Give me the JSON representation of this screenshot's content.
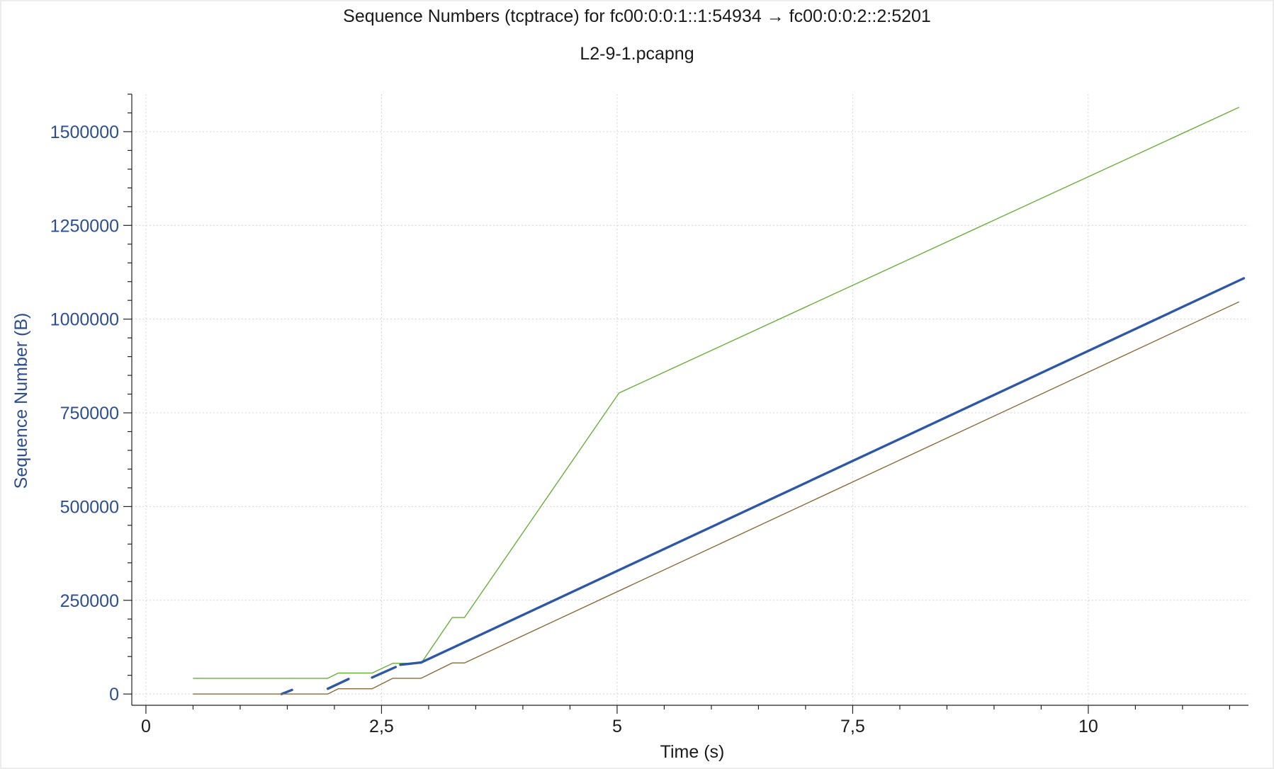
{
  "chart_data": {
    "type": "line",
    "title": "Sequence Numbers (tcptrace) for fc00:0:0:1::1:54934 → fc00:0:0:2::2:5201",
    "subtitle": "L2-9-1.pcapng",
    "xlabel": "Time (s)",
    "ylabel": "Sequence Number (B)",
    "xlim": [
      -0.15,
      11.7
    ],
    "ylim": [
      -30000,
      1600000
    ],
    "xticks": [
      {
        "value": 0,
        "label": "0"
      },
      {
        "value": 2.5,
        "label": "2,5"
      },
      {
        "value": 5,
        "label": "5"
      },
      {
        "value": 7.5,
        "label": "7,5"
      },
      {
        "value": 10,
        "label": "10"
      }
    ],
    "yticks": [
      {
        "value": 0,
        "label": "0"
      },
      {
        "value": 250000,
        "label": "250000"
      },
      {
        "value": 500000,
        "label": "500000"
      },
      {
        "value": 750000,
        "label": "750000"
      },
      {
        "value": 1000000,
        "label": "1000000"
      },
      {
        "value": 1250000,
        "label": "1250000"
      },
      {
        "value": 1500000,
        "label": "1500000"
      }
    ],
    "grid": true,
    "series": [
      {
        "kind": "receive-window",
        "color": "#6aae3a",
        "points": [
          [
            0.5,
            42000
          ],
          [
            1.93,
            42000
          ],
          [
            2.04,
            56000
          ],
          [
            2.4,
            56000
          ],
          [
            2.62,
            82000
          ],
          [
            2.92,
            82000
          ],
          [
            3.25,
            204000
          ],
          [
            3.38,
            204000
          ],
          [
            5.02,
            803000
          ],
          [
            11.6,
            1565000
          ]
        ]
      },
      {
        "kind": "sequence",
        "color": "#2e58a6",
        "segments": [
          [
            [
              1.44,
              0
            ],
            [
              1.55,
              11000
            ]
          ],
          [
            [
              1.93,
              14000
            ],
            [
              2.15,
              40000
            ]
          ],
          [
            [
              2.4,
              44000
            ],
            [
              2.65,
              72000
            ]
          ],
          [
            [
              2.7,
              78000
            ],
            [
              2.92,
              84000
            ]
          ],
          [
            [
              2.92,
              84000
            ],
            [
              11.65,
              1109000
            ]
          ]
        ]
      },
      {
        "kind": "ack",
        "color": "#8b6a3a",
        "points": [
          [
            0.5,
            0
          ],
          [
            1.93,
            0
          ],
          [
            2.04,
            14000
          ],
          [
            2.4,
            14000
          ],
          [
            2.62,
            42000
          ],
          [
            2.92,
            42000
          ],
          [
            3.25,
            83000
          ],
          [
            3.38,
            83000
          ],
          [
            11.6,
            1046000
          ]
        ]
      }
    ]
  }
}
